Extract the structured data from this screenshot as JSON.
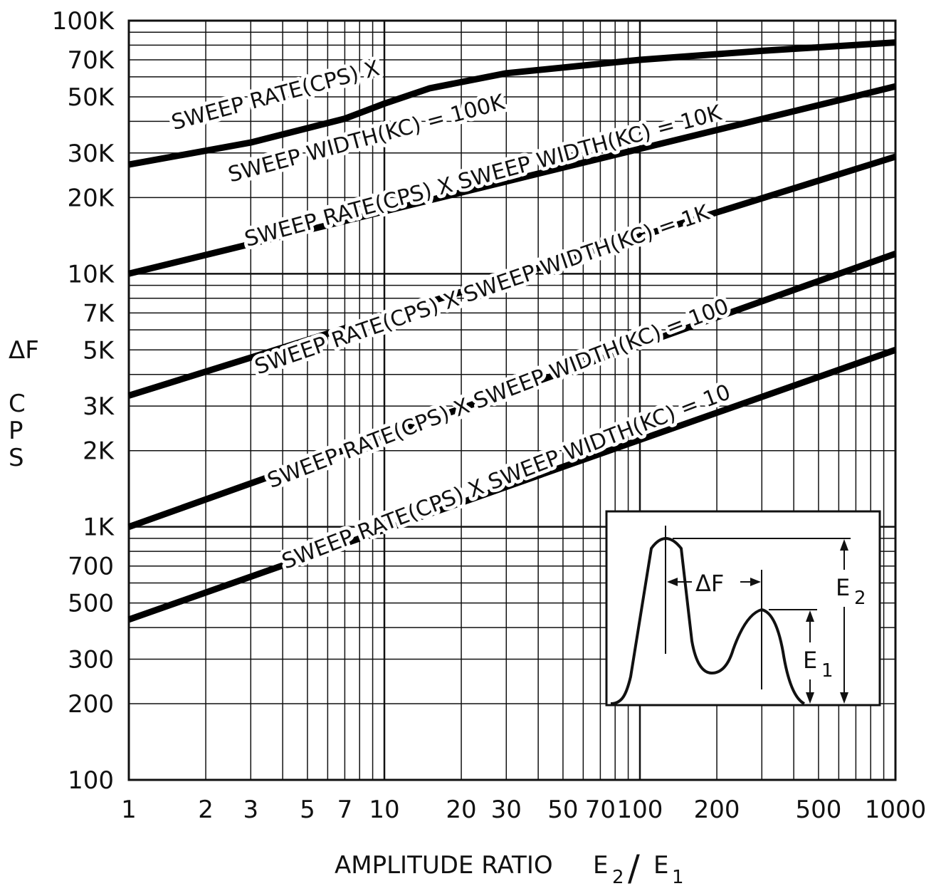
{
  "chart_data": {
    "type": "line",
    "title": "",
    "xlabel": "AMPLITUDE RATIO E2/E1",
    "xlabel_parts": {
      "main": "AMPLITUDE RATIO",
      "e": "E",
      "sub2": "2",
      "slash": "/",
      "sub1": "1"
    },
    "ylabel": "ΔF CPS",
    "ylabel_parts": {
      "delta_f": "ΔF",
      "c": "C",
      "p": "P",
      "s": "S"
    },
    "x_scale": "log",
    "y_scale": "log",
    "xlim": [
      1,
      1000
    ],
    "ylim": [
      100,
      100000
    ],
    "grid": true,
    "x_ticks": [
      {
        "value": 1,
        "label": "1"
      },
      {
        "value": 2,
        "label": "2"
      },
      {
        "value": 3,
        "label": "3"
      },
      {
        "value": 5,
        "label": "5"
      },
      {
        "value": 7,
        "label": "7"
      },
      {
        "value": 10,
        "label": "10"
      },
      {
        "value": 20,
        "label": "20"
      },
      {
        "value": 30,
        "label": "30"
      },
      {
        "value": 50,
        "label": "50"
      },
      {
        "value": 70,
        "label": "70"
      },
      {
        "value": 100,
        "label": "100"
      },
      {
        "value": 200,
        "label": "200"
      },
      {
        "value": 500,
        "label": "500"
      },
      {
        "value": 1000,
        "label": "1000"
      }
    ],
    "y_ticks": [
      {
        "value": 100,
        "label": "100"
      },
      {
        "value": 200,
        "label": "200"
      },
      {
        "value": 300,
        "label": "300"
      },
      {
        "value": 500,
        "label": "500"
      },
      {
        "value": 700,
        "label": "700"
      },
      {
        "value": 1000,
        "label": "1K"
      },
      {
        "value": 2000,
        "label": "2K"
      },
      {
        "value": 3000,
        "label": "3K"
      },
      {
        "value": 5000,
        "label": "5K"
      },
      {
        "value": 7000,
        "label": "7K"
      },
      {
        "value": 10000,
        "label": "10K"
      },
      {
        "value": 20000,
        "label": "20K"
      },
      {
        "value": 30000,
        "label": "30K"
      },
      {
        "value": 50000,
        "label": "50K"
      },
      {
        "value": 70000,
        "label": "70K"
      },
      {
        "value": 100000,
        "label": "100K"
      }
    ],
    "series": [
      {
        "points": [
          [
            1,
            27000
          ],
          [
            3,
            33000
          ],
          [
            7,
            41000
          ],
          [
            10,
            47000
          ],
          [
            15,
            54000
          ],
          [
            30,
            62000
          ],
          [
            100,
            70000
          ],
          [
            300,
            76000
          ],
          [
            1000,
            82000
          ]
        ],
        "label_lines": [
          {
            "text": "SWEEP RATE(CPS) X",
            "x": 1.5,
            "y": 37000,
            "angle": -15
          },
          {
            "text": "SWEEP WIDTH(KC) = 100K",
            "x": 2.5,
            "y": 23000,
            "angle": -15
          }
        ]
      },
      {
        "points": [
          [
            1,
            10000
          ],
          [
            1000,
            55000
          ]
        ],
        "label_lines": [
          {
            "text": "SWEEP RATE(CPS) X SWEEP WIDTH(KC) = 10K",
            "x": 2.9,
            "y": 12800,
            "angle": -15
          }
        ]
      },
      {
        "points": [
          [
            1,
            3300
          ],
          [
            1000,
            29000
          ]
        ],
        "label_lines": [
          {
            "text": "SWEEP RATE(CPS) X SWEEP WIDTH(KC) = 1K",
            "x": 3.2,
            "y": 4000,
            "angle": -19
          }
        ]
      },
      {
        "points": [
          [
            1,
            1000
          ],
          [
            1000,
            12000
          ]
        ],
        "label_lines": [
          {
            "text": "SWEEP RATE(CPS) X SWEEP WIDTH(KC) = 100",
            "x": 3.6,
            "y": 1420,
            "angle": -21
          }
        ]
      },
      {
        "points": [
          [
            1,
            430
          ],
          [
            1000,
            5000
          ]
        ],
        "label_lines": [
          {
            "text": "SWEEP RATE(CPS) X SWEEP WIDTH(KC) = 10",
            "x": 4.1,
            "y": 680,
            "angle": -21
          }
        ]
      }
    ],
    "inset": {
      "delta_label": "ΔF",
      "e2": "E",
      "e2_sub": "2",
      "e1": "E",
      "e1_sub": "1"
    }
  }
}
